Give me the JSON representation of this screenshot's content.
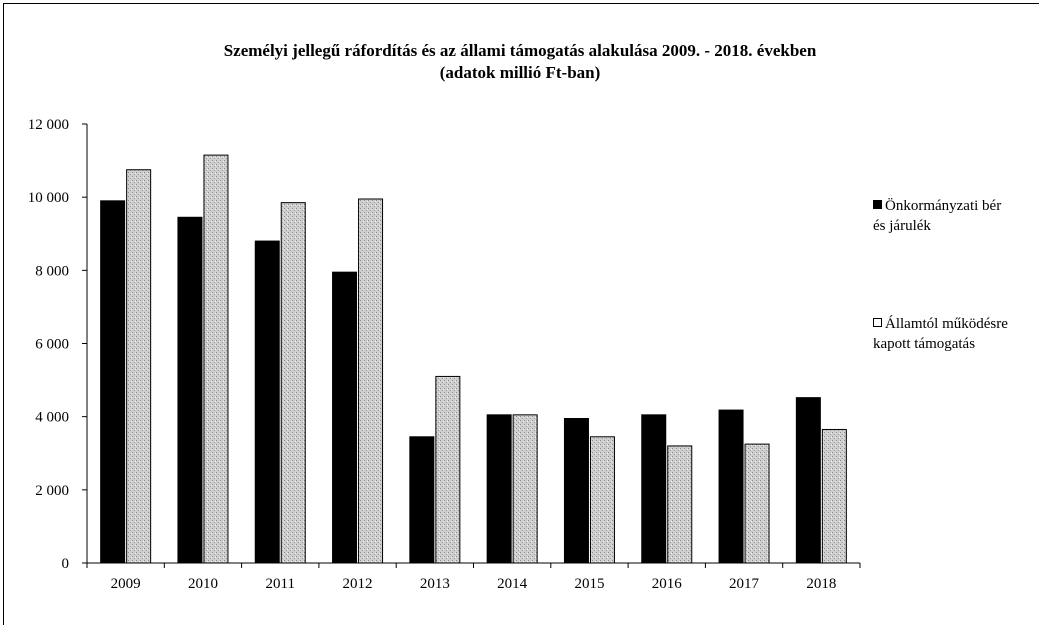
{
  "title_line1": "Személyi jellegű ráfordítás és az állami támogatás alakulása 2009. - 2018. években",
  "title_line2": "(adatok millió Ft-ban)",
  "chart_data": {
    "type": "bar",
    "categories": [
      "2009",
      "2010",
      "2011",
      "2012",
      "2013",
      "2014",
      "2015",
      "2016",
      "2017",
      "2018"
    ],
    "series": [
      {
        "name": "Önkormányzati bér és járulék",
        "values": [
          9900,
          9450,
          8800,
          7950,
          3450,
          4050,
          3950,
          4050,
          4180,
          4520
        ],
        "color": "#000000"
      },
      {
        "name": "Államtól működésre kapott támogatás",
        "values": [
          10750,
          11150,
          9850,
          9950,
          5100,
          4050,
          3450,
          3200,
          3250,
          3650
        ],
        "color": "#c8c8c8"
      }
    ],
    "ylim": [
      0,
      12000
    ],
    "yticks": [
      "0",
      "2 000",
      "4 000",
      "6 000",
      "8 000",
      "10 000",
      "12 000"
    ],
    "xlabel": "",
    "ylabel": "",
    "legend_position": "right",
    "grid": false
  },
  "legend": {
    "item1_line1": "Önkormányzati bér",
    "item1_line2": "és járulék",
    "item2_line1": "Államtól működésre",
    "item2_line2": "kapott támogatás"
  }
}
